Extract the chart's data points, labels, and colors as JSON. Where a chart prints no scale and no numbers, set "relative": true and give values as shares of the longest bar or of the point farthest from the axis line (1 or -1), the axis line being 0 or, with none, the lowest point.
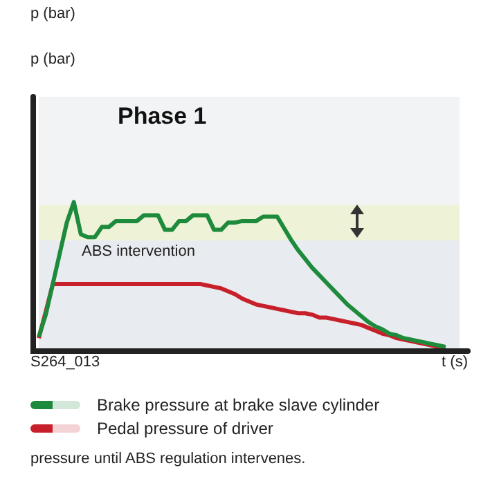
{
  "chart_data": {
    "type": "line",
    "relative": true,
    "title": "Phase 1",
    "xlabel": "t (s)",
    "categories": [
      null,
      null,
      null,
      null,
      null,
      null,
      null,
      null,
      null,
      null,
      null,
      null,
      null,
      null,
      null,
      null,
      null,
      null,
      null,
      null,
      null,
      null,
      null,
      null,
      null,
      null,
      null,
      null,
      null,
      null,
      null,
      null,
      null,
      null,
      null,
      null,
      null,
      null,
      null,
      null,
      null,
      null,
      null,
      null,
      null,
      null,
      null,
      null,
      null,
      null,
      null,
      null,
      null,
      null,
      null,
      null,
      null,
      null,
      null,
      null,
      null
    ],
    "series": [
      {
        "name": "Brake pressure at brake slave cylinder",
        "color": "#1e8a3c",
        "values": [
          0.08,
          0.23,
          0.44,
          0.65,
          0.86,
          1.0,
          0.78,
          0.76,
          0.76,
          0.83,
          0.83,
          0.87,
          0.87,
          0.87,
          0.87,
          0.91,
          0.91,
          0.91,
          0.81,
          0.81,
          0.87,
          0.87,
          0.91,
          0.91,
          0.91,
          0.81,
          0.81,
          0.86,
          0.86,
          0.87,
          0.87,
          0.87,
          0.9,
          0.9,
          0.9,
          0.82,
          0.74,
          0.67,
          0.61,
          0.55,
          0.5,
          0.45,
          0.4,
          0.35,
          0.3,
          0.26,
          0.22,
          0.18,
          0.15,
          0.13,
          0.1,
          0.09,
          0.07,
          0.06,
          0.05,
          0.04,
          0.03,
          0.02,
          0.01,
          null,
          null
        ]
      },
      {
        "name": "Pedal pressure of driver",
        "color": "#c8202a",
        "values": [
          0.07,
          0.25,
          0.44,
          0.44,
          0.44,
          0.44,
          0.44,
          0.44,
          0.44,
          0.44,
          0.44,
          0.44,
          0.44,
          0.44,
          0.44,
          0.44,
          0.44,
          0.44,
          0.44,
          0.44,
          0.44,
          0.44,
          0.44,
          0.44,
          0.43,
          0.42,
          0.41,
          0.39,
          0.37,
          0.34,
          0.32,
          0.3,
          0.29,
          0.28,
          0.27,
          0.26,
          0.25,
          0.24,
          0.24,
          0.23,
          0.21,
          0.21,
          0.2,
          0.19,
          0.18,
          0.17,
          0.16,
          0.14,
          0.12,
          0.1,
          0.09,
          0.07,
          0.06,
          0.05,
          0.04,
          0.03,
          0.02,
          0.01,
          0.01,
          null,
          null
        ]
      }
    ],
    "bands": [
      {
        "axis": "y",
        "from": 0,
        "to": 0.74,
        "color": "#e8ecf0"
      },
      {
        "axis": "y",
        "from": 0.74,
        "to": 0.98,
        "color": "#eef3d8"
      }
    ],
    "annotations": [
      "p (bar)",
      "p (bar)",
      "S264_013",
      "ABS intervention",
      "pressure until ABS regulation intervenes."
    ],
    "grid": false,
    "legend": "bottom",
    "marker": "none",
    "line_style": "solid"
  }
}
